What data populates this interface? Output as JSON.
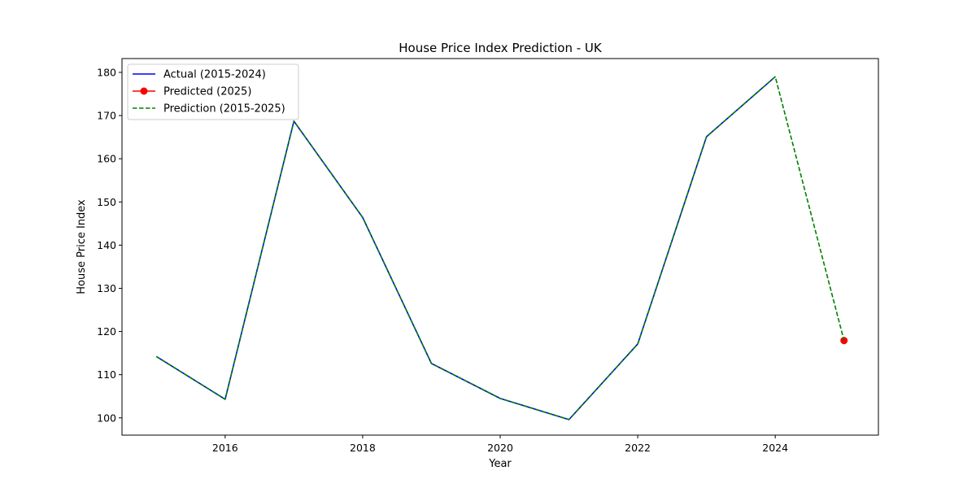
{
  "chart_data": {
    "type": "line",
    "title": "House Price Index Prediction - UK",
    "xlabel": "Year",
    "ylabel": "House Price Index",
    "xlim": [
      2014.5,
      2025.5
    ],
    "ylim": [
      96,
      183.2
    ],
    "xticks": [
      2016,
      2018,
      2020,
      2022,
      2024
    ],
    "yticks": [
      100,
      110,
      120,
      130,
      140,
      150,
      160,
      170,
      180
    ],
    "grid": false,
    "legend_position": "upper-left",
    "series": [
      {
        "name": "Actual (2015-2024)",
        "color": "#0000ff",
        "style": "solid",
        "marker": "none",
        "x": [
          2015,
          2016,
          2017,
          2018,
          2019,
          2020,
          2021,
          2022,
          2023,
          2024
        ],
        "y": [
          114.2,
          104.3,
          168.7,
          146.4,
          112.6,
          104.5,
          99.6,
          117.1,
          165.1,
          179.0
        ]
      },
      {
        "name": "Predicted (2025)",
        "color": "#ff0000",
        "style": "solid",
        "marker": "circle",
        "x": [
          2025
        ],
        "y": [
          117.9
        ]
      },
      {
        "name": "Prediction (2015-2025)",
        "color": "#008000",
        "style": "dashed",
        "marker": "none",
        "x": [
          2015,
          2016,
          2017,
          2018,
          2019,
          2020,
          2021,
          2022,
          2023,
          2024,
          2025
        ],
        "y": [
          114.2,
          104.3,
          168.7,
          146.4,
          112.6,
          104.5,
          99.6,
          117.1,
          165.1,
          179.0,
          117.9
        ]
      }
    ]
  }
}
